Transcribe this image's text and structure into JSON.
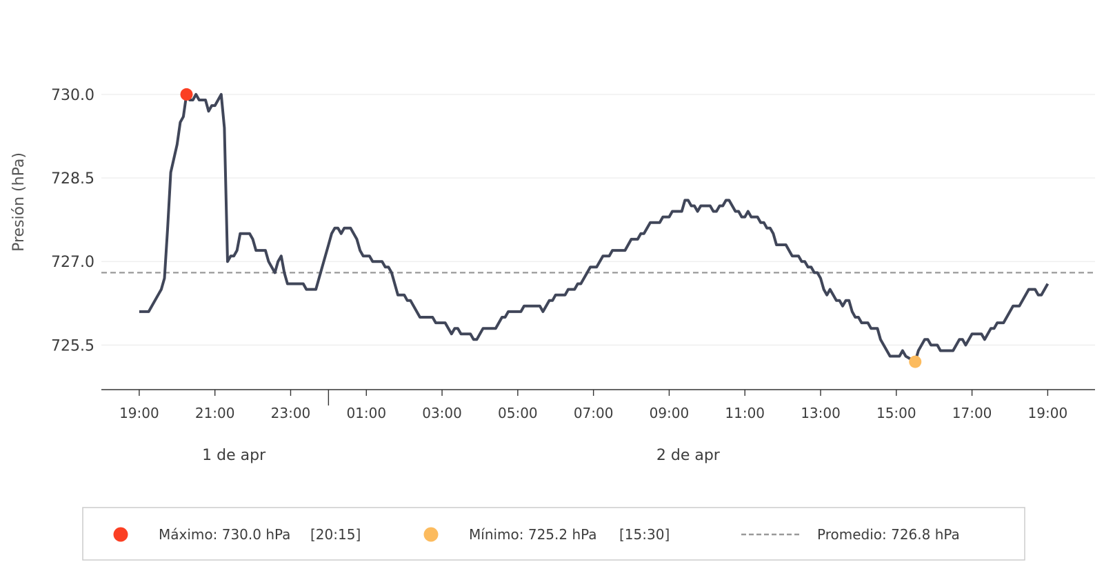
{
  "chart_data": {
    "type": "line",
    "title": "",
    "ylabel": "Presión (hPa)",
    "xlabel": "",
    "ylim": [
      724.7,
      731.2
    ],
    "yticks": [
      725.5,
      727.0,
      728.5,
      730.0
    ],
    "ytick_labels": [
      "725.5",
      "727.0",
      "728.5",
      "730.0"
    ],
    "x_start": "2024-04-01T18:00",
    "x_end": "2024-04-02T20:15",
    "xticks": [
      "2024-04-01T19:00",
      "2024-04-01T21:00",
      "2024-04-01T23:00",
      "2024-04-02T01:00",
      "2024-04-02T03:00",
      "2024-04-02T05:00",
      "2024-04-02T07:00",
      "2024-04-02T09:00",
      "2024-04-02T11:00",
      "2024-04-02T13:00",
      "2024-04-02T15:00",
      "2024-04-02T17:00",
      "2024-04-02T19:00"
    ],
    "xtick_labels": [
      "19:00",
      "21:00",
      "23:00",
      "01:00",
      "03:00",
      "05:00",
      "07:00",
      "09:00",
      "11:00",
      "13:00",
      "15:00",
      "17:00",
      "19:00"
    ],
    "day_separator": "2024-04-02T00:00",
    "day_labels": [
      {
        "text": "1 de apr",
        "at": "2024-04-01T21:30"
      },
      {
        "text": "2 de apr",
        "at": "2024-04-02T09:30"
      }
    ],
    "series": [
      {
        "color": "#404659",
        "points": [
          [
            "2024-04-01T19:00",
            726.1
          ],
          [
            "2024-04-01T19:15",
            726.1
          ],
          [
            "2024-04-01T19:20",
            726.2
          ],
          [
            "2024-04-01T19:30",
            726.4
          ],
          [
            "2024-04-01T19:35",
            726.5
          ],
          [
            "2024-04-01T19:40",
            726.7
          ],
          [
            "2024-04-01T19:45",
            727.6
          ],
          [
            "2024-04-01T19:50",
            728.6
          ],
          [
            "2024-04-01T20:00",
            729.1
          ],
          [
            "2024-04-01T20:05",
            729.5
          ],
          [
            "2024-04-01T20:10",
            729.6
          ],
          [
            "2024-04-01T20:15",
            730.0
          ],
          [
            "2024-04-01T20:20",
            729.9
          ],
          [
            "2024-04-01T20:25",
            729.9
          ],
          [
            "2024-04-01T20:30",
            730.0
          ],
          [
            "2024-04-01T20:35",
            729.9
          ],
          [
            "2024-04-01T20:45",
            729.9
          ],
          [
            "2024-04-01T20:50",
            729.7
          ],
          [
            "2024-04-01T20:55",
            729.8
          ],
          [
            "2024-04-01T21:00",
            729.8
          ],
          [
            "2024-04-01T21:10",
            730.0
          ],
          [
            "2024-04-01T21:15",
            729.4
          ],
          [
            "2024-04-01T21:20",
            727.0
          ],
          [
            "2024-04-01T21:25",
            727.1
          ],
          [
            "2024-04-01T21:30",
            727.1
          ],
          [
            "2024-04-01T21:35",
            727.2
          ],
          [
            "2024-04-01T21:40",
            727.5
          ],
          [
            "2024-04-01T21:55",
            727.5
          ],
          [
            "2024-04-01T22:00",
            727.4
          ],
          [
            "2024-04-01T22:05",
            727.2
          ],
          [
            "2024-04-01T22:20",
            727.2
          ],
          [
            "2024-04-01T22:25",
            727.0
          ],
          [
            "2024-04-01T22:35",
            726.8
          ],
          [
            "2024-04-01T22:40",
            727.0
          ],
          [
            "2024-04-01T22:45",
            727.1
          ],
          [
            "2024-04-01T22:50",
            726.8
          ],
          [
            "2024-04-01T22:55",
            726.6
          ],
          [
            "2024-04-01T23:20",
            726.6
          ],
          [
            "2024-04-01T23:25",
            726.5
          ],
          [
            "2024-04-01T23:40",
            726.5
          ],
          [
            "2024-04-01T23:50",
            726.9
          ],
          [
            "2024-04-02T00:00",
            727.3
          ],
          [
            "2024-04-02T00:05",
            727.5
          ],
          [
            "2024-04-02T00:10",
            727.6
          ],
          [
            "2024-04-02T00:15",
            727.6
          ],
          [
            "2024-04-02T00:20",
            727.5
          ],
          [
            "2024-04-02T00:25",
            727.6
          ],
          [
            "2024-04-02T00:35",
            727.6
          ],
          [
            "2024-04-02T00:45",
            727.4
          ],
          [
            "2024-04-02T00:50",
            727.2
          ],
          [
            "2024-04-02T00:55",
            727.1
          ],
          [
            "2024-04-02T01:05",
            727.1
          ],
          [
            "2024-04-02T01:10",
            727.0
          ],
          [
            "2024-04-02T01:25",
            727.0
          ],
          [
            "2024-04-02T01:30",
            726.9
          ],
          [
            "2024-04-02T01:35",
            726.9
          ],
          [
            "2024-04-02T01:40",
            726.8
          ],
          [
            "2024-04-02T01:50",
            726.4
          ],
          [
            "2024-04-02T02:00",
            726.4
          ],
          [
            "2024-04-02T02:05",
            726.3
          ],
          [
            "2024-04-02T02:10",
            726.3
          ],
          [
            "2024-04-02T02:25",
            726.0
          ],
          [
            "2024-04-02T02:45",
            726.0
          ],
          [
            "2024-04-02T02:50",
            725.9
          ],
          [
            "2024-04-02T03:05",
            725.9
          ],
          [
            "2024-04-02T03:15",
            725.7
          ],
          [
            "2024-04-02T03:20",
            725.8
          ],
          [
            "2024-04-02T03:25",
            725.8
          ],
          [
            "2024-04-02T03:30",
            725.7
          ],
          [
            "2024-04-02T03:45",
            725.7
          ],
          [
            "2024-04-02T03:50",
            725.6
          ],
          [
            "2024-04-02T03:55",
            725.6
          ],
          [
            "2024-04-02T04:05",
            725.8
          ],
          [
            "2024-04-02T04:20",
            725.8
          ],
          [
            "2024-04-02T04:25",
            725.8
          ],
          [
            "2024-04-02T04:35",
            726.0
          ],
          [
            "2024-04-02T04:40",
            726.0
          ],
          [
            "2024-04-02T04:45",
            726.1
          ],
          [
            "2024-04-02T05:05",
            726.1
          ],
          [
            "2024-04-02T05:10",
            726.2
          ],
          [
            "2024-04-02T05:35",
            726.2
          ],
          [
            "2024-04-02T05:40",
            726.1
          ],
          [
            "2024-04-02T05:50",
            726.3
          ],
          [
            "2024-04-02T05:55",
            726.3
          ],
          [
            "2024-04-02T06:00",
            726.4
          ],
          [
            "2024-04-02T06:15",
            726.4
          ],
          [
            "2024-04-02T06:20",
            726.5
          ],
          [
            "2024-04-02T06:30",
            726.5
          ],
          [
            "2024-04-02T06:35",
            726.6
          ],
          [
            "2024-04-02T06:40",
            726.6
          ],
          [
            "2024-04-02T06:50",
            726.8
          ],
          [
            "2024-04-02T06:55",
            726.9
          ],
          [
            "2024-04-02T07:05",
            726.9
          ],
          [
            "2024-04-02T07:15",
            727.1
          ],
          [
            "2024-04-02T07:25",
            727.1
          ],
          [
            "2024-04-02T07:30",
            727.2
          ],
          [
            "2024-04-02T07:50",
            727.2
          ],
          [
            "2024-04-02T08:00",
            727.4
          ],
          [
            "2024-04-02T08:10",
            727.4
          ],
          [
            "2024-04-02T08:15",
            727.5
          ],
          [
            "2024-04-02T08:20",
            727.5
          ],
          [
            "2024-04-02T08:30",
            727.7
          ],
          [
            "2024-04-02T08:45",
            727.7
          ],
          [
            "2024-04-02T08:50",
            727.8
          ],
          [
            "2024-04-02T09:00",
            727.8
          ],
          [
            "2024-04-02T09:05",
            727.9
          ],
          [
            "2024-04-02T09:20",
            727.9
          ],
          [
            "2024-04-02T09:25",
            728.1
          ],
          [
            "2024-04-02T09:30",
            728.1
          ],
          [
            "2024-04-02T09:35",
            728.0
          ],
          [
            "2024-04-02T09:40",
            728.0
          ],
          [
            "2024-04-02T09:45",
            727.9
          ],
          [
            "2024-04-02T09:50",
            728.0
          ],
          [
            "2024-04-02T10:05",
            728.0
          ],
          [
            "2024-04-02T10:10",
            727.9
          ],
          [
            "2024-04-02T10:15",
            727.9
          ],
          [
            "2024-04-02T10:20",
            728.0
          ],
          [
            "2024-04-02T10:25",
            728.0
          ],
          [
            "2024-04-02T10:30",
            728.1
          ],
          [
            "2024-04-02T10:35",
            728.1
          ],
          [
            "2024-04-02T10:45",
            727.9
          ],
          [
            "2024-04-02T10:50",
            727.9
          ],
          [
            "2024-04-02T10:55",
            727.8
          ],
          [
            "2024-04-02T11:00",
            727.8
          ],
          [
            "2024-04-02T11:05",
            727.9
          ],
          [
            "2024-04-02T11:10",
            727.8
          ],
          [
            "2024-04-02T11:20",
            727.8
          ],
          [
            "2024-04-02T11:25",
            727.7
          ],
          [
            "2024-04-02T11:30",
            727.7
          ],
          [
            "2024-04-02T11:35",
            727.6
          ],
          [
            "2024-04-02T11:40",
            727.6
          ],
          [
            "2024-04-02T11:45",
            727.5
          ],
          [
            "2024-04-02T11:50",
            727.3
          ],
          [
            "2024-04-02T12:05",
            727.3
          ],
          [
            "2024-04-02T12:15",
            727.1
          ],
          [
            "2024-04-02T12:25",
            727.1
          ],
          [
            "2024-04-02T12:30",
            727.0
          ],
          [
            "2024-04-02T12:35",
            727.0
          ],
          [
            "2024-04-02T12:40",
            726.9
          ],
          [
            "2024-04-02T12:45",
            726.9
          ],
          [
            "2024-04-02T12:50",
            726.8
          ],
          [
            "2024-04-02T12:55",
            726.8
          ],
          [
            "2024-04-02T13:00",
            726.7
          ],
          [
            "2024-04-02T13:05",
            726.5
          ],
          [
            "2024-04-02T13:10",
            726.4
          ],
          [
            "2024-04-02T13:15",
            726.5
          ],
          [
            "2024-04-02T13:25",
            726.3
          ],
          [
            "2024-04-02T13:30",
            726.3
          ],
          [
            "2024-04-02T13:35",
            726.2
          ],
          [
            "2024-04-02T13:40",
            726.3
          ],
          [
            "2024-04-02T13:45",
            726.3
          ],
          [
            "2024-04-02T13:50",
            726.1
          ],
          [
            "2024-04-02T13:55",
            726.0
          ],
          [
            "2024-04-02T14:00",
            726.0
          ],
          [
            "2024-04-02T14:05",
            725.9
          ],
          [
            "2024-04-02T14:15",
            725.9
          ],
          [
            "2024-04-02T14:20",
            725.8
          ],
          [
            "2024-04-02T14:30",
            725.8
          ],
          [
            "2024-04-02T14:35",
            725.6
          ],
          [
            "2024-04-02T14:50",
            725.3
          ],
          [
            "2024-04-02T15:05",
            725.3
          ],
          [
            "2024-04-02T15:10",
            725.4
          ],
          [
            "2024-04-02T15:15",
            725.3
          ],
          [
            "2024-04-02T15:30",
            725.2
          ],
          [
            "2024-04-02T15:35",
            725.4
          ],
          [
            "2024-04-02T15:40",
            725.5
          ],
          [
            "2024-04-02T15:45",
            725.6
          ],
          [
            "2024-04-02T15:50",
            725.6
          ],
          [
            "2024-04-02T15:55",
            725.5
          ],
          [
            "2024-04-02T16:05",
            725.5
          ],
          [
            "2024-04-02T16:10",
            725.4
          ],
          [
            "2024-04-02T16:30",
            725.4
          ],
          [
            "2024-04-02T16:40",
            725.6
          ],
          [
            "2024-04-02T16:45",
            725.6
          ],
          [
            "2024-04-02T16:50",
            725.5
          ],
          [
            "2024-04-02T17:00",
            725.7
          ],
          [
            "2024-04-02T17:15",
            725.7
          ],
          [
            "2024-04-02T17:20",
            725.6
          ],
          [
            "2024-04-02T17:30",
            725.8
          ],
          [
            "2024-04-02T17:35",
            725.8
          ],
          [
            "2024-04-02T17:40",
            725.9
          ],
          [
            "2024-04-02T17:50",
            725.9
          ],
          [
            "2024-04-02T18:05",
            726.2
          ],
          [
            "2024-04-02T18:15",
            726.2
          ],
          [
            "2024-04-02T18:30",
            726.5
          ],
          [
            "2024-04-02T18:40",
            726.5
          ],
          [
            "2024-04-02T18:45",
            726.4
          ],
          [
            "2024-04-02T18:50",
            726.4
          ],
          [
            "2024-04-02T19:00",
            726.6
          ]
        ]
      }
    ],
    "max_marker": {
      "x": "2024-04-01T20:15",
      "y": 730.0,
      "color": "#fb3f23"
    },
    "min_marker": {
      "x": "2024-04-02T15:30",
      "y": 725.2,
      "color": "#fcbb5e"
    },
    "average": {
      "y": 726.8,
      "color": "#999999"
    },
    "grid": true,
    "legend_position": "bottom"
  },
  "legend": {
    "max_label": "Máximo: 730.0 hPa",
    "max_time": "[20:15]",
    "min_label": "Mínimo: 725.2 hPa",
    "min_time": "[15:30]",
    "avg_label": "Promedio: 726.8 hPa"
  }
}
